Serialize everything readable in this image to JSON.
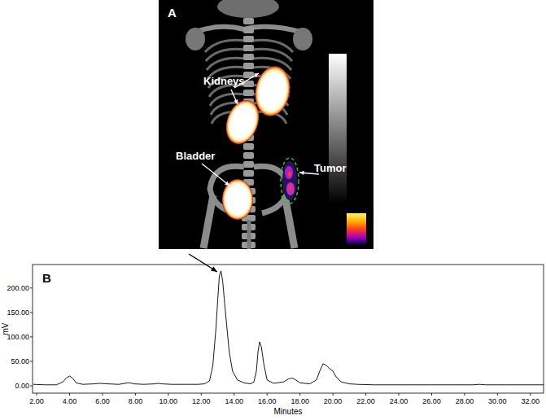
{
  "image_panel": {
    "label": "A",
    "annotations": [
      "Kidneys",
      "Bladder",
      "Tumor"
    ]
  },
  "chart_data": {
    "type": "line",
    "title": "B",
    "x_label": "Minutes",
    "y_label": "mV",
    "x": [
      1.8,
      2.5,
      3.2,
      3.6,
      3.8,
      4.0,
      4.2,
      4.4,
      4.8,
      5.5,
      5.8,
      6.3,
      7.0,
      7.5,
      7.7,
      7.9,
      8.5,
      9.2,
      9.4,
      9.6,
      10.2,
      11.0,
      11.8,
      12.2,
      12.5,
      12.7,
      12.9,
      13.0,
      13.1,
      13.2,
      13.3,
      13.5,
      13.7,
      13.9,
      14.2,
      14.6,
      15.0,
      15.2,
      15.35,
      15.45,
      15.55,
      15.65,
      15.8,
      16.0,
      16.4,
      17.0,
      17.3,
      17.5,
      17.7,
      18.0,
      18.6,
      19.0,
      19.2,
      19.4,
      19.6,
      19.8,
      20.0,
      20.2,
      20.5,
      21.0,
      21.5,
      22.5,
      24.0,
      26.0,
      28.5,
      28.9,
      29.3,
      30.5,
      32.8
    ],
    "values": [
      3,
      2,
      2,
      8,
      16,
      20,
      15,
      6,
      3,
      4,
      5,
      4,
      3,
      6,
      6,
      4,
      3,
      4,
      5,
      4,
      3,
      3,
      3,
      4,
      10,
      40,
      120,
      175,
      225,
      235,
      215,
      140,
      70,
      30,
      12,
      6,
      4,
      8,
      30,
      70,
      90,
      80,
      45,
      12,
      5,
      8,
      14,
      16,
      13,
      6,
      4,
      12,
      30,
      45,
      42,
      35,
      30,
      18,
      8,
      4,
      3,
      2,
      2,
      2,
      2,
      3,
      2,
      2,
      2
    ],
    "color": "#000000",
    "xlim": [
      1.75,
      32.8
    ],
    "xticks": [
      {
        "value": 2,
        "label": "2.00"
      },
      {
        "value": 4,
        "label": "4.00"
      },
      {
        "value": 6,
        "label": "6.00"
      },
      {
        "value": 8,
        "label": "8.00"
      },
      {
        "value": 10,
        "label": "10.00"
      },
      {
        "value": 12,
        "label": "12.00"
      },
      {
        "value": 14,
        "label": "14.00"
      },
      {
        "value": 16,
        "label": "16.00"
      },
      {
        "value": 18,
        "label": "18.00"
      },
      {
        "value": 20,
        "label": "20.00"
      },
      {
        "value": 22,
        "label": "22.00"
      },
      {
        "value": 24,
        "label": "24.00"
      },
      {
        "value": 26,
        "label": "26.00"
      },
      {
        "value": 28,
        "label": "28.00"
      },
      {
        "value": 30,
        "label": "30.00"
      },
      {
        "value": 32,
        "label": "32.00"
      }
    ],
    "ylim": [
      -15,
      248
    ],
    "yticks": [
      {
        "value": 0,
        "label": "0.00"
      },
      {
        "value": 50,
        "label": "50.00"
      },
      {
        "value": 100,
        "label": "100.00"
      },
      {
        "value": 150,
        "label": "150.00"
      },
      {
        "value": 200,
        "label": "200.00"
      }
    ],
    "grid": false
  }
}
